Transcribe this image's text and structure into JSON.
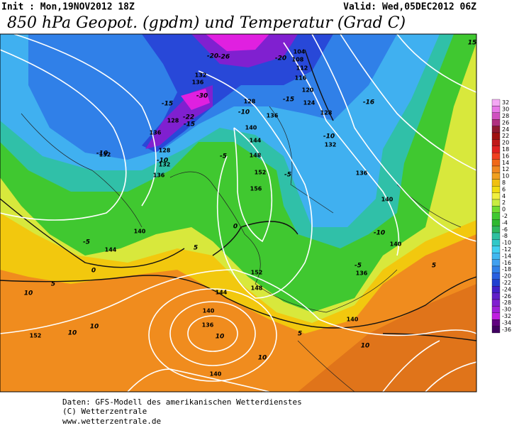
{
  "header": {
    "init": "Init : Mon,19NOV2012 18Z",
    "valid": "Valid: Wed,05DEC2012 06Z",
    "title": "850 hPa Geopot. (gpdm) und Temperatur (Grad C)"
  },
  "map": {
    "geopotential_labels": [
      "104",
      "108",
      "112",
      "116",
      "120",
      "124",
      "128",
      "128",
      "132",
      "136",
      "136",
      "140",
      "144",
      "148",
      "152",
      "156",
      "132",
      "136",
      "140",
      "140",
      "136",
      "128",
      "132",
      "136",
      "128",
      "136",
      "132",
      "140",
      "144",
      "152",
      "148",
      "144",
      "140",
      "136",
      "140",
      "152",
      "140"
    ],
    "temperature_labels": [
      "-20",
      "-26",
      "-20",
      "-15",
      "-30",
      "-22",
      "-15",
      "-10",
      "-15",
      "-16",
      "-10",
      "-10",
      "-10",
      "-5",
      "-5",
      "-5",
      "0",
      "-10",
      "-5",
      "5",
      "5",
      "0",
      "5",
      "10",
      "10",
      "10",
      "10",
      "5",
      "10",
      "10",
      "15"
    ]
  },
  "colorbar": {
    "values": [
      32,
      30,
      28,
      26,
      24,
      22,
      20,
      18,
      16,
      14,
      12,
      10,
      8,
      6,
      4,
      2,
      0,
      -2,
      -4,
      -6,
      -8,
      -10,
      -12,
      -14,
      -16,
      -18,
      -20,
      -22,
      -24,
      -26,
      -28,
      -30,
      -32,
      -34,
      -36
    ],
    "colors": [
      "#f4a8f4",
      "#e878e8",
      "#d050c0",
      "#b03080",
      "#901830",
      "#a01010",
      "#c01818",
      "#e02020",
      "#f04020",
      "#f06818",
      "#f08820",
      "#f0a020",
      "#f0c010",
      "#f0dc10",
      "#f0f040",
      "#c8ec40",
      "#70dc30",
      "#40c830",
      "#30b830",
      "#30b860",
      "#30c0a0",
      "#30c8c8",
      "#40d0f0",
      "#40b8f0",
      "#40a0f0",
      "#3080e8",
      "#2860e0",
      "#2040d0",
      "#4020c8",
      "#6020c8",
      "#8020d0",
      "#a020d8",
      "#c020e0",
      "#600080",
      "#400060"
    ]
  },
  "footer": {
    "lines": [
      "Daten: GFS-Modell des amerikanischen Wetterdienstes",
      "(C) Wetterzentrale",
      "www.wetterzentrale.de"
    ]
  }
}
